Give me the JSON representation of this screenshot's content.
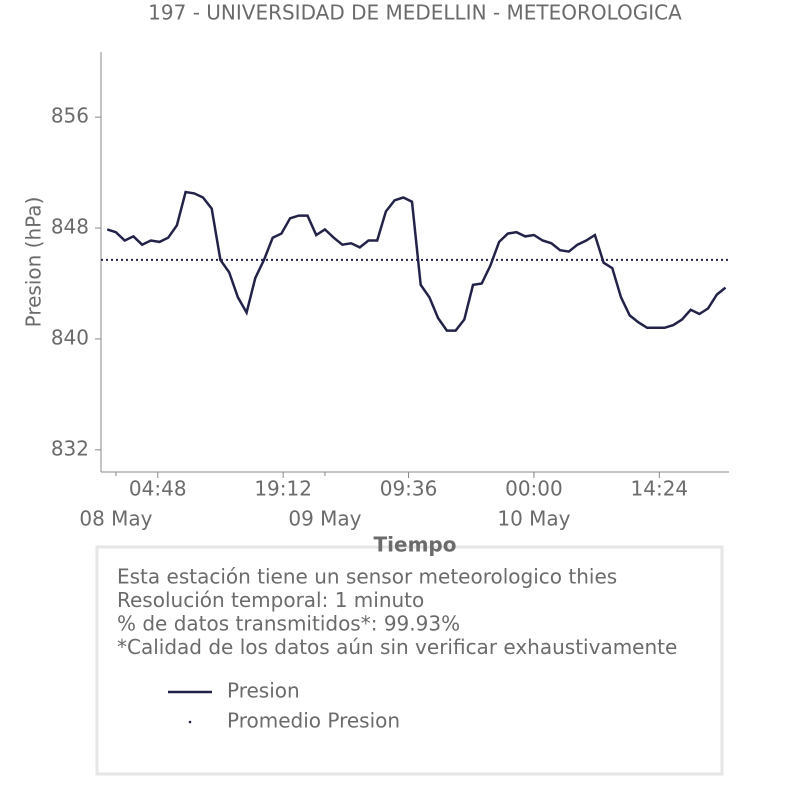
{
  "chart_data": {
    "type": "line",
    "title": "197 - UNIVERSIDAD DE MEDELLIN - METEOROLOGICA",
    "xlabel": "Tiempo",
    "ylabel": "Presion (hPa)",
    "x": [
      "07 May 23:00",
      "08 May 00:00",
      "08 May 01:00",
      "08 May 02:00",
      "08 May 03:00",
      "08 May 04:00",
      "08 May 05:00",
      "08 May 06:00",
      "08 May 07:00",
      "08 May 08:00",
      "08 May 09:00",
      "08 May 10:00",
      "08 May 11:00",
      "08 May 12:00",
      "08 May 13:00",
      "08 May 14:00",
      "08 May 15:00",
      "08 May 16:00",
      "08 May 17:00",
      "08 May 18:00",
      "08 May 19:00",
      "08 May 20:00",
      "08 May 21:00",
      "08 May 22:00",
      "08 May 23:00",
      "09 May 00:00",
      "09 May 01:00",
      "09 May 02:00",
      "09 May 03:00",
      "09 May 04:00",
      "09 May 05:00",
      "09 May 06:00",
      "09 May 07:00",
      "09 May 08:00",
      "09 May 09:00",
      "09 May 10:00",
      "09 May 11:00",
      "09 May 12:00",
      "09 May 13:00",
      "09 May 14:00",
      "09 May 15:00",
      "09 May 16:00",
      "09 May 17:00",
      "09 May 18:00",
      "09 May 19:00",
      "09 May 20:00",
      "09 May 21:00",
      "09 May 22:00",
      "09 May 23:00",
      "10 May 00:00",
      "10 May 01:00",
      "10 May 02:00",
      "10 May 03:00",
      "10 May 04:00",
      "10 May 05:00",
      "10 May 06:00",
      "10 May 07:00",
      "10 May 08:00",
      "10 May 09:00",
      "10 May 10:00",
      "10 May 11:00",
      "10 May 12:00",
      "10 May 13:00",
      "10 May 14:00",
      "10 May 15:00",
      "10 May 16:00",
      "10 May 17:00",
      "10 May 18:00",
      "10 May 19:00",
      "10 May 20:00",
      "10 May 21:00",
      "10 May 22:00"
    ],
    "series": [
      {
        "name": "Presion",
        "color": "#23234a",
        "values": [
          847.9,
          847.7,
          847.1,
          847.4,
          846.8,
          847.1,
          847.0,
          847.3,
          848.2,
          850.6,
          850.5,
          850.2,
          849.4,
          845.7,
          844.8,
          843.0,
          841.9,
          844.4,
          845.7,
          847.3,
          847.6,
          848.7,
          848.9,
          848.9,
          847.5,
          847.9,
          847.3,
          846.8,
          846.9,
          846.6,
          847.1,
          847.1,
          849.2,
          850.0,
          850.2,
          849.9,
          843.9,
          843.0,
          841.5,
          840.6,
          840.6,
          841.4,
          843.9,
          844.0,
          845.3,
          847.0,
          847.6,
          847.7,
          847.4,
          847.5,
          847.1,
          846.9,
          846.4,
          846.3,
          846.8,
          847.1,
          847.5,
          845.5,
          845.1,
          843.0,
          841.7,
          841.2,
          840.8,
          840.8,
          840.8,
          841.0,
          841.4,
          842.1,
          841.8,
          842.2,
          843.2,
          843.7
        ]
      },
      {
        "name": "Promedio Presion",
        "color": "#23234a",
        "value": 845.7
      }
    ],
    "xlim": [
      "07 May 22:17",
      "10 May 22:24"
    ],
    "xticks": [
      {
        "value": "08 May 04:48",
        "label": "04:48"
      },
      {
        "value": "08 May 19:12",
        "label": "19:12"
      },
      {
        "value": "09 May 09:36",
        "label": "09:36"
      },
      {
        "value": "10 May 00:00",
        "label": "00:00"
      },
      {
        "value": "10 May 14:24",
        "label": "14:24"
      }
    ],
    "xticks_minor": [
      {
        "value": "08 May 00:00",
        "label": "08 May"
      },
      {
        "value": "09 May 00:00",
        "label": "09 May"
      },
      {
        "value": "10 May 00:00",
        "label": "10 May"
      }
    ],
    "ylim": [
      830.4,
      860.7
    ],
    "yticks": [
      832,
      840,
      848,
      856
    ],
    "info": [
      "Esta estación tiene un sensor meteorologico thies",
      "Resolución temporal: 1 minuto",
      "% de datos transmitidos*: 99.93%",
      "*Calidad de los datos aún sin verificar exhaustivamente"
    ]
  }
}
